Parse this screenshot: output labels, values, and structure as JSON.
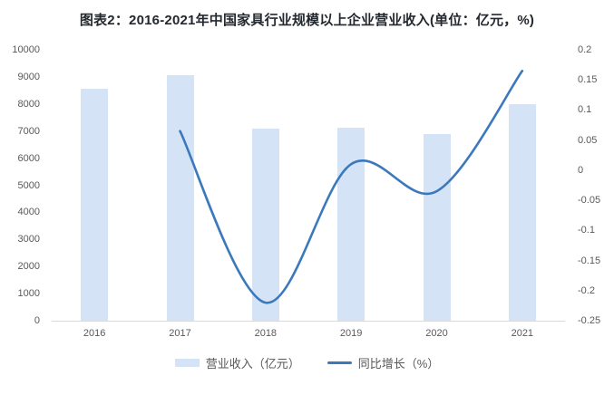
{
  "title": "图表2：2016-2021年中国家具行业规模以上企业营业收入(单位：亿元，%)",
  "colors": {
    "bar_fill": "#d5e3f6",
    "line_stroke": "#3b79bc",
    "axis_text": "#595959",
    "axis_line": "#d9d9d9",
    "title_text": "#24292f",
    "background": "#ffffff"
  },
  "legend": {
    "items": [
      {
        "label": "营业收入（亿元）",
        "series": "bar"
      },
      {
        "label": "同比增长（%）",
        "series": "line"
      }
    ],
    "position": "bottom"
  },
  "chart_data": {
    "type": "combo",
    "title": "图表2：2016-2021年中国家具行业规模以上企业营业收入(单位：亿元，%)",
    "categories": [
      "2016",
      "2017",
      "2018",
      "2019",
      "2020",
      "2021"
    ],
    "series": [
      {
        "name": "营业收入（亿元）",
        "type": "bar",
        "axis": "left",
        "values": [
          8560,
          9060,
          7080,
          7120,
          6880,
          8000
        ]
      },
      {
        "name": "同比增长（%）",
        "type": "line",
        "axis": "right",
        "values": [
          null,
          0.065,
          -0.22,
          0.01,
          -0.035,
          0.165
        ]
      }
    ],
    "left_axis": {
      "min": 0,
      "max": 10000,
      "step": 1000,
      "tick_labels": [
        "10000",
        "9000",
        "8000",
        "7000",
        "6000",
        "5000",
        "4000",
        "3000",
        "2000",
        "1000",
        "0"
      ]
    },
    "right_axis": {
      "min": -0.25,
      "max": 0.2,
      "step": 0.05,
      "tick_labels": [
        "0.2",
        "0.15",
        "0.1",
        "0.05",
        "0",
        "-0.05",
        "-0.1",
        "-0.15",
        "-0.2",
        "-0.25"
      ]
    },
    "grid": false,
    "legend_position": "bottom"
  }
}
